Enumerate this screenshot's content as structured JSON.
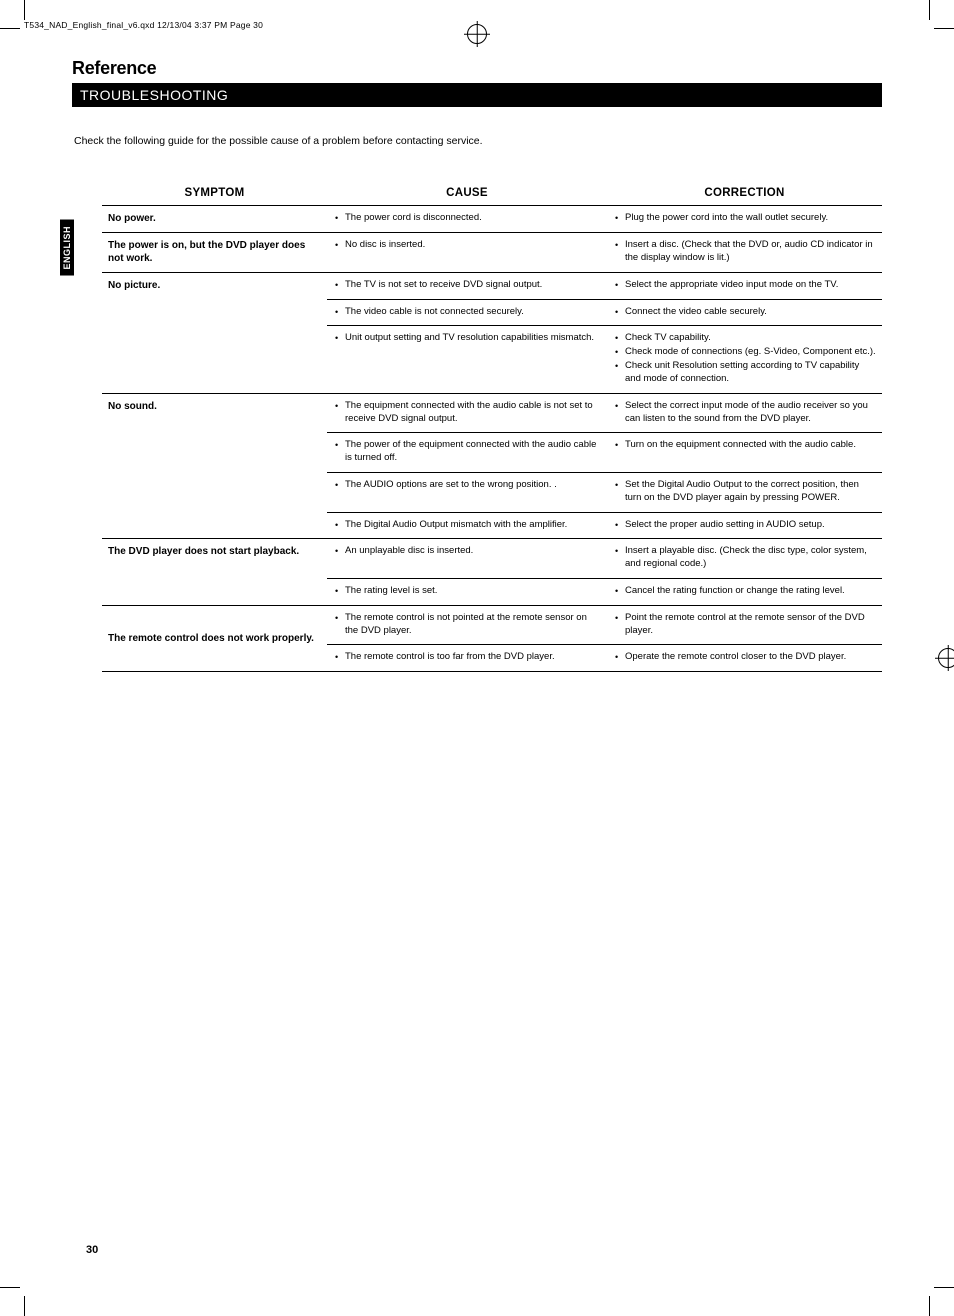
{
  "header_line": "T534_NAD_English_final_v6.qxd  12/13/04  3:37 PM  Page 30",
  "section_title": "Reference",
  "band_title": "TROUBLESHOOTING",
  "intro": "Check the following guide for the possible cause of a problem before contacting service.",
  "side_tab": "ENGLISH",
  "page_num": "30",
  "table": {
    "headers": {
      "symptom": "SYMPTOM",
      "cause": "CAUSE",
      "correction": "CORRECTION"
    },
    "rows": [
      {
        "symptom": "No power.",
        "cause": [
          "The power cord is disconnected."
        ],
        "corr": [
          "Plug the power cord into the wall outlet securely."
        ],
        "sep": "heavy"
      },
      {
        "symptom": "The power is on, but the DVD player does not work.",
        "cause": [
          "No disc is inserted."
        ],
        "corr": [
          "Insert a disc. (Check that the DVD or, audio CD indicator in the display window is lit.)"
        ],
        "sep": "heavy"
      },
      {
        "symptom": "No picture.",
        "cause": [
          "The TV is not set to receive DVD signal output."
        ],
        "corr": [
          "Select the appropriate video input mode on the TV."
        ],
        "sep": "light",
        "rowspan": 3
      },
      {
        "cause": [
          "The video cable is not connected securely."
        ],
        "corr": [
          "Connect the video cable securely."
        ],
        "sep": "light"
      },
      {
        "cause": [
          "Unit output setting and TV resolution capabilities mismatch."
        ],
        "corr": [
          "Check TV capability.",
          "Check mode of connections (eg. S-Video, Component etc.).",
          "Check unit Resolution setting according to TV capability and mode of connection."
        ],
        "sep": "heavy"
      },
      {
        "symptom": "No sound.",
        "cause": [
          "The equipment connected with the audio cable is not set to receive DVD signal output."
        ],
        "corr": [
          "Select the correct input mode of the audio receiver so you can listen to the sound from the DVD player."
        ],
        "sep": "light",
        "rowspan": 4
      },
      {
        "cause": [
          "The power of the equipment connected with the audio cable is turned off."
        ],
        "corr": [
          "Turn on the equipment connected with the audio cable."
        ],
        "sep": "light"
      },
      {
        "cause": [
          "The AUDIO options are set to the wrong position. ."
        ],
        "corr": [
          "Set the Digital Audio Output to the correct position, then turn on the DVD player again by pressing POWER."
        ],
        "sep": "light"
      },
      {
        "cause": [
          "The Digital Audio Output mismatch with the amplifier."
        ],
        "corr": [
          "Select the proper audio setting in AUDIO setup."
        ],
        "sep": "heavy"
      },
      {
        "symptom": "The DVD player does not start playback.",
        "cause": [
          "An unplayable disc is inserted."
        ],
        "corr": [
          "Insert a playable disc. (Check the disc type, color system, and regional code.)"
        ],
        "sep": "light",
        "rowspan": 2
      },
      {
        "cause": [
          "The rating level is set."
        ],
        "corr": [
          "Cancel the rating function or change the rating level."
        ],
        "sep": "heavy"
      },
      {
        "symptom": "The remote control does not work properly.",
        "cause": [
          "The remote control is not pointed at the remote sensor on the DVD player."
        ],
        "corr": [
          "Point the remote control at the remote sensor of the DVD player."
        ],
        "sep": "light",
        "rowspan": 2,
        "sym_valign": "bottom"
      },
      {
        "cause": [
          "The remote control is too far from the DVD player."
        ],
        "corr": [
          "Operate the remote control closer to the DVD player."
        ],
        "sep": "heavy"
      }
    ]
  }
}
